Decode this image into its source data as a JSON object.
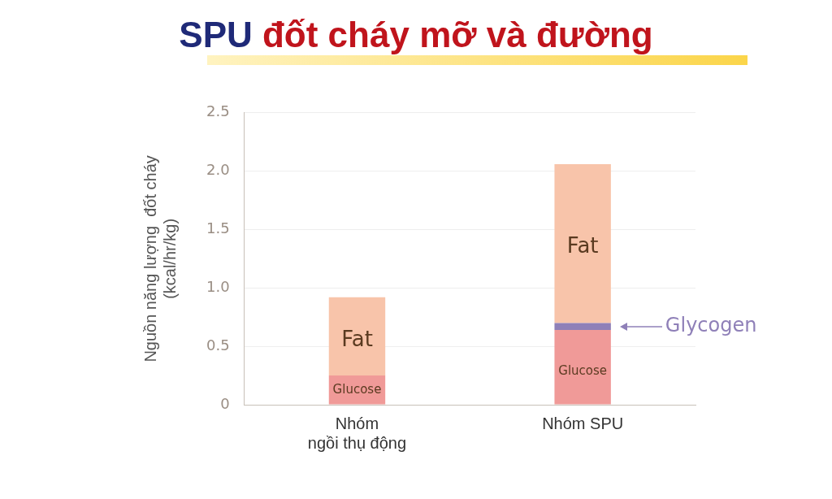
{
  "chart_data": {
    "type": "bar",
    "title": "SPU đốt cháy mỡ và đường",
    "ylabel": "Nguồn năng lượng  đốt cháy\n(kcal/hr/kg)",
    "categories": [
      "Nhóm\nngồi thụ động",
      "Nhóm SPU"
    ],
    "stacked": true,
    "series": [
      {
        "name": "Glucose",
        "color": "#f09a98",
        "values": [
          0.25,
          0.64
        ]
      },
      {
        "color": "#8f80b8",
        "values": [
          null,
          0.06
        ]
      },
      {
        "name": "Fat",
        "color": "#f8c4aa",
        "values": [
          0.67,
          1.36
        ]
      }
    ],
    "ylim": [
      0,
      2.5
    ],
    "yticks": [
      0,
      0.5,
      {
        "value": 1,
        "label": "1.0"
      },
      1.5,
      {
        "value": 2,
        "label": "2.0"
      },
      2.5
    ],
    "annotations": [
      "Glycogen"
    ],
    "grid": "y",
    "legend": false
  }
}
